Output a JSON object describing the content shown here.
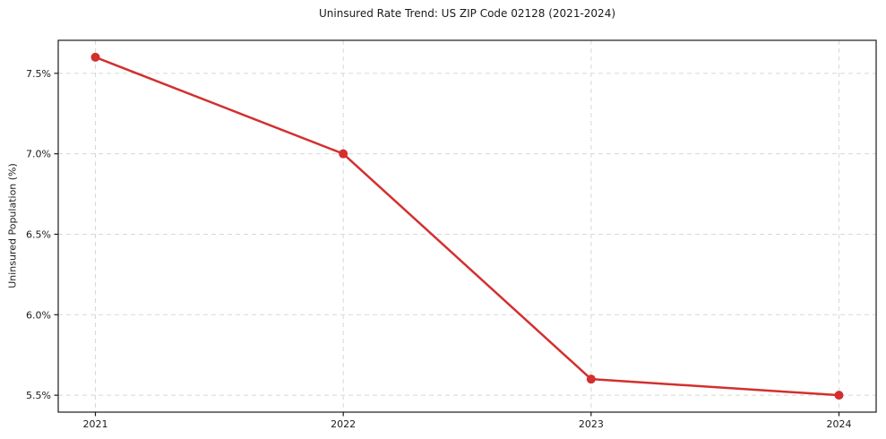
{
  "chart_data": {
    "type": "line",
    "title": "Uninsured Rate Trend: US ZIP Code 02128 (2021-2024)",
    "xlabel": "",
    "ylabel": "Uninsured Population (%)",
    "x": [
      2021,
      2022,
      2023,
      2024
    ],
    "series": [
      {
        "name": "Uninsured rate",
        "values": [
          7.6,
          7.0,
          5.6,
          5.5
        ]
      }
    ],
    "x_tick_labels": [
      "2021",
      "2022",
      "2023",
      "2024"
    ],
    "y_ticks": [
      5.5,
      6.0,
      6.5,
      7.0,
      7.5
    ],
    "y_tick_labels": [
      "5.5%",
      "6.0%",
      "6.5%",
      "7.0%",
      "7.5%"
    ],
    "xlim": [
      2020.85,
      2024.15
    ],
    "ylim": [
      5.395,
      7.705
    ],
    "grid": true,
    "grid_line_style": "dashed",
    "legend_position": "none",
    "line_color": "#d32f2f",
    "marker": "circle",
    "grid_color": "#d8d8d8",
    "spine_color": "#1a1a1a"
  }
}
